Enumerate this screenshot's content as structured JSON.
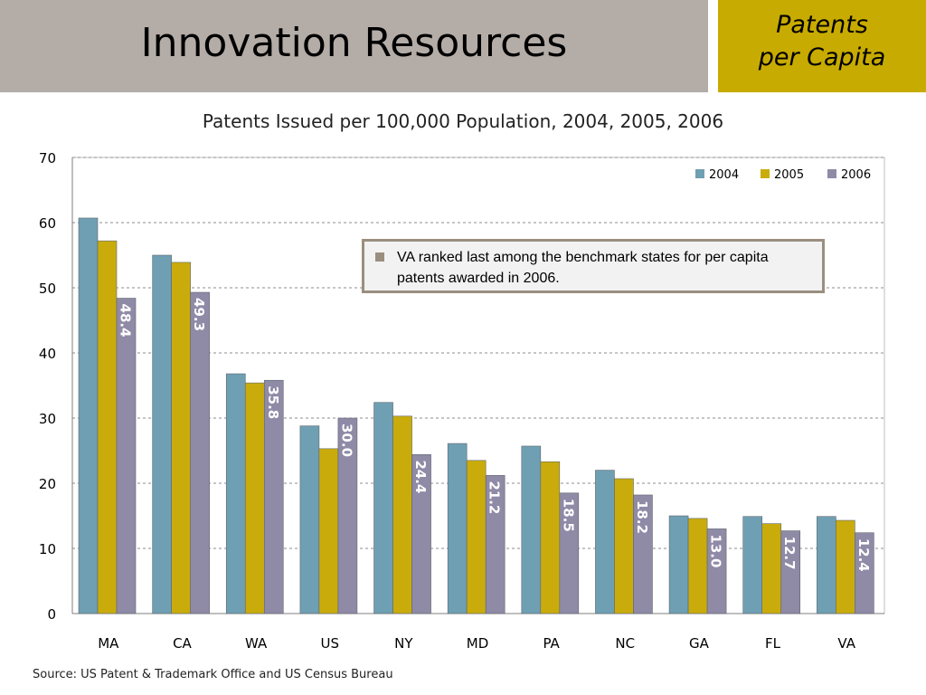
{
  "slide": {
    "title": "Innovation Resources",
    "corner_line1": "Patents",
    "corner_line2": "per Capita",
    "source": "Source: US Patent & Trademark Office and US Census Bureau"
  },
  "callout": {
    "text": "VA ranked last among the benchmark states for per capita patents awarded in 2006."
  },
  "colors": {
    "series_2004": "#6f9fb2",
    "series_2005": "#c9ac0c",
    "series_2006": "#8f8aa6",
    "header_band": "#b4aca7",
    "corner_box": "#c8ab00"
  },
  "chart_data": {
    "type": "bar",
    "title": "Patents Issued per 100,000 Population, 2004, 2005, 2006",
    "categories": [
      "MA",
      "CA",
      "WA",
      "US",
      "NY",
      "MD",
      "PA",
      "NC",
      "GA",
      "FL",
      "VA"
    ],
    "series": [
      {
        "name": "2004",
        "values": [
          60.7,
          55.0,
          36.8,
          28.8,
          32.4,
          26.1,
          25.7,
          22.0,
          15.0,
          14.9,
          14.9
        ]
      },
      {
        "name": "2005",
        "values": [
          57.2,
          53.9,
          35.4,
          25.3,
          30.3,
          23.5,
          23.3,
          20.7,
          14.6,
          13.8,
          14.3
        ]
      },
      {
        "name": "2006",
        "values": [
          48.4,
          49.3,
          35.8,
          30.0,
          24.4,
          21.2,
          18.5,
          18.2,
          13.0,
          12.7,
          12.4
        ]
      }
    ],
    "data_labels_2006": [
      "48.4",
      "49.3",
      "35.8",
      "30.0",
      "24.4",
      "21.2",
      "18.5",
      "18.2",
      "13.0",
      "12.7",
      "12.4"
    ],
    "y_ticks": [
      "0",
      "10",
      "20",
      "30",
      "40",
      "50",
      "60",
      "70"
    ],
    "ylim": [
      0,
      70
    ],
    "grid": true,
    "legend_position": "top-right",
    "xlabel": "",
    "ylabel": ""
  }
}
